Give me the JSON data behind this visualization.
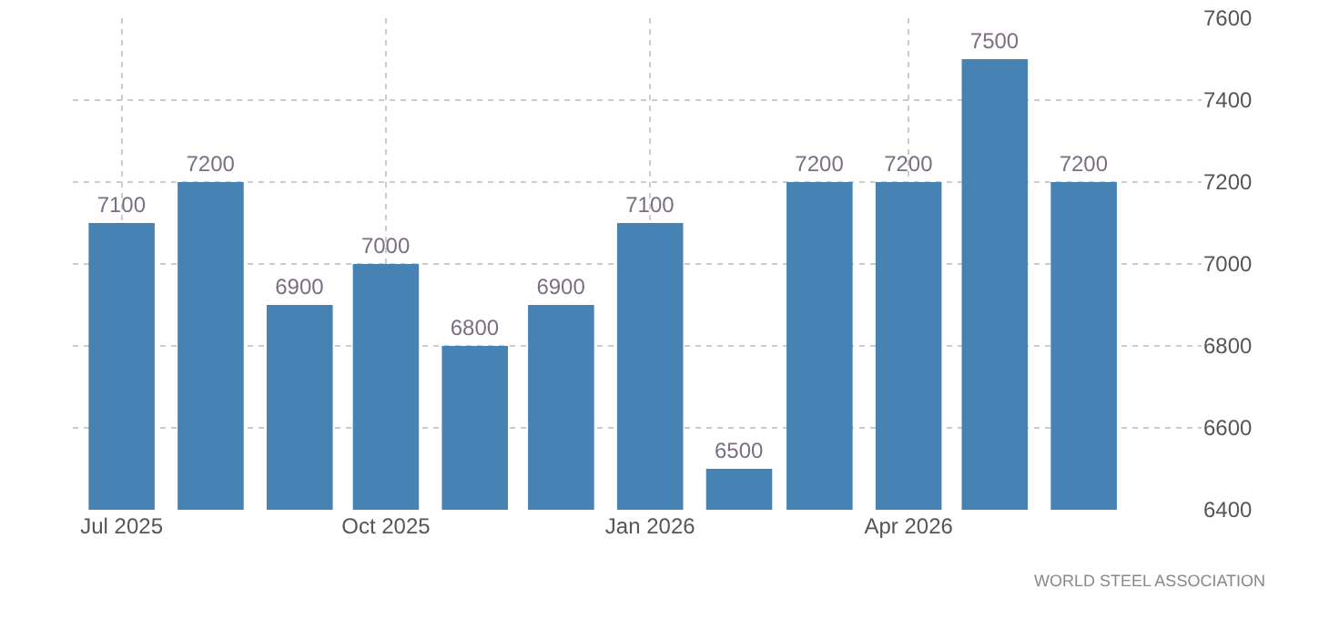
{
  "chart_data": {
    "type": "bar",
    "x": [
      "2025-07",
      "2025-08",
      "2025-09",
      "2025-10",
      "2025-11",
      "2025-12",
      "2026-01",
      "2026-02",
      "2026-03",
      "2026-04",
      "2026-05",
      "2026-06"
    ],
    "values": [
      7100,
      7200,
      6900,
      7000,
      6800,
      6900,
      7100,
      6500,
      7200,
      7200,
      7500,
      7200
    ],
    "color": "#4682b4",
    "data_labels": true,
    "ylim": [
      6400,
      7600
    ],
    "yticks": [
      6400,
      6600,
      6800,
      7000,
      7200,
      7400,
      7600
    ],
    "xlim": [
      "2025-06-14",
      "2026-07-12"
    ],
    "xticks": [
      {
        "value": "2025-07",
        "label": "Jul 2025"
      },
      {
        "value": "2025-10",
        "label": "Oct 2025"
      },
      {
        "value": "2026-01",
        "label": "Jan 2026"
      },
      {
        "value": "2026-04",
        "label": "Apr 2026"
      }
    ],
    "grid": true,
    "annotations": [
      "WORLD STEEL ASSOCIATION"
    ]
  }
}
